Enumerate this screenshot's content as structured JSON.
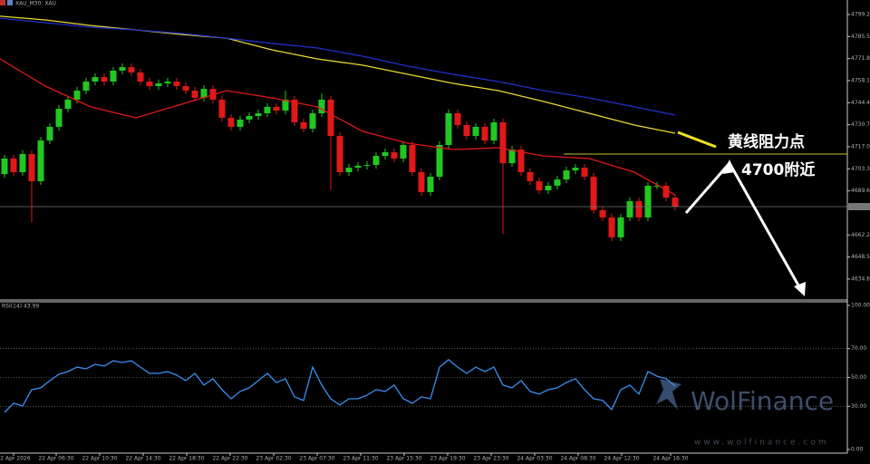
{
  "chart_data": [
    {
      "type": "candlestick",
      "symbol_label": "XAU_M30: XAU",
      "xlim": [
        -0.5,
        93
      ],
      "ylim": [
        4621.8,
        4808.2
      ],
      "yticks": [
        {
          "value": 4799.2,
          "label": "4799.20"
        },
        {
          "value": 4785.5,
          "label": "4785.50"
        },
        {
          "value": 4771.8,
          "label": "4771.80"
        },
        {
          "value": 4758.1,
          "label": "4758.10"
        },
        {
          "value": 4744.4,
          "label": "4744.40"
        },
        {
          "value": 4730.7,
          "label": "4730.70"
        },
        {
          "value": 4717,
          "label": "4717.00"
        },
        {
          "value": 4703.3,
          "label": "4703.30"
        },
        {
          "value": 4689.6,
          "label": "4689.60"
        },
        {
          "value": 4662.2,
          "label": "4662.20"
        },
        {
          "value": 4648.5,
          "label": "4648.50"
        },
        {
          "value": 4634.8,
          "label": "4634.80"
        }
      ],
      "up_color": "#22c722",
      "down_color": "#e01818",
      "open": [
        4700.0,
        4709.7,
        4701.2,
        4712.5,
        4695.6,
        4720.9,
        4729.4,
        4740.6,
        4746.3,
        4751.9,
        4757.5,
        4760.3,
        4757.5,
        4764.3,
        4766.5,
        4763.2,
        4757.5,
        4754.7,
        4756.4,
        4757.5,
        4754.7,
        4751.9,
        4747.4,
        4753.0,
        4746.3,
        4735.0,
        4729.4,
        4733.9,
        4736.1,
        4737.8,
        4741.8,
        4739.5,
        4746.3,
        4732.2,
        4728.2,
        4737.8,
        4746.3,
        4723.7,
        4701.2,
        4704.0,
        4705.2,
        4705.7,
        4711.3,
        4713.6,
        4709.7,
        4718.1,
        4701.2,
        4688.8,
        4698.4,
        4718.1,
        4737.8,
        4730.5,
        4723.7,
        4729.4,
        4720.9,
        4732.2,
        4706.8,
        4715.3,
        4701.2,
        4695.6,
        4689.9,
        4692.8,
        4696.7,
        4702.3,
        4704.0,
        4698.4,
        4677.6,
        4673.1,
        4660.7,
        4673.1,
        4683.2,
        4673.1,
        4692.8,
        4692.8,
        4685.4
      ],
      "high": [
        4712.0,
        4712.0,
        4714.8,
        4714.8,
        4723.2,
        4731.7,
        4742.9,
        4748.6,
        4754.2,
        4759.8,
        4762.6,
        4762.6,
        4766.6,
        4768.8,
        4768.8,
        4765.5,
        4759.8,
        4758.7,
        4759.8,
        4759.8,
        4757.0,
        4754.2,
        4755.3,
        4755.3,
        4748.6,
        4737.3,
        4736.2,
        4738.4,
        4740.1,
        4744.1,
        4744.1,
        4752.0,
        4748.6,
        4734.5,
        4740.1,
        4750.0,
        4748.6,
        4726.0,
        4706.3,
        4707.5,
        4708.0,
        4713.6,
        4715.9,
        4715.9,
        4720.4,
        4720.4,
        4703.5,
        4700.7,
        4720.4,
        4740.1,
        4740.1,
        4732.8,
        4731.7,
        4731.7,
        4734.5,
        4734.5,
        4717.6,
        4717.6,
        4703.5,
        4697.9,
        4695.1,
        4699.0,
        4704.6,
        4706.3,
        4706.3,
        4700.7,
        4679.9,
        4675.4,
        4675.4,
        4685.5,
        4685.5,
        4695.1,
        4695.1,
        4695.1,
        4687.7
      ],
      "low": [
        4697.7,
        4698.9,
        4698.9,
        4670.0,
        4693.3,
        4718.6,
        4727.1,
        4738.3,
        4744.0,
        4749.6,
        4755.2,
        4755.2,
        4755.2,
        4762.0,
        4760.9,
        4755.2,
        4752.4,
        4752.4,
        4754.1,
        4752.4,
        4749.6,
        4745.1,
        4745.1,
        4744.0,
        4732.7,
        4727.1,
        4727.1,
        4731.6,
        4733.8,
        4735.5,
        4737.2,
        4737.2,
        4729.9,
        4725.9,
        4725.9,
        4735.5,
        4690.0,
        4698.9,
        4698.9,
        4701.7,
        4702.9,
        4703.4,
        4709.0,
        4707.4,
        4707.4,
        4698.9,
        4686.5,
        4686.5,
        4696.1,
        4715.8,
        4728.2,
        4721.4,
        4721.4,
        4718.6,
        4718.6,
        4663.0,
        4704.5,
        4698.9,
        4693.3,
        4687.6,
        4687.6,
        4690.5,
        4694.4,
        4700.0,
        4696.1,
        4675.3,
        4670.8,
        4658.4,
        4658.4,
        4670.8,
        4670.8,
        4670.8,
        4690.5,
        4683.1,
        4677.5
      ],
      "close": [
        4709.7,
        4701.2,
        4712.5,
        4695.6,
        4720.9,
        4729.4,
        4740.6,
        4746.3,
        4751.9,
        4757.5,
        4760.3,
        4757.5,
        4764.3,
        4766.5,
        4763.2,
        4757.5,
        4754.7,
        4756.4,
        4757.5,
        4754.7,
        4751.9,
        4747.4,
        4753.0,
        4746.3,
        4735.0,
        4729.4,
        4733.9,
        4736.1,
        4737.8,
        4741.8,
        4739.5,
        4746.3,
        4732.2,
        4728.2,
        4737.8,
        4746.3,
        4723.7,
        4701.2,
        4704.0,
        4705.2,
        4705.7,
        4711.3,
        4713.6,
        4709.7,
        4718.1,
        4701.2,
        4688.8,
        4698.4,
        4718.1,
        4737.8,
        4730.5,
        4723.7,
        4729.4,
        4720.9,
        4732.2,
        4706.8,
        4715.3,
        4701.2,
        4695.6,
        4689.9,
        4692.8,
        4696.7,
        4702.3,
        4704.0,
        4698.4,
        4677.6,
        4673.1,
        4660.7,
        4673.1,
        4683.2,
        4673.1,
        4692.8,
        4692.8,
        4685.4,
        4679.8
      ],
      "lines": [
        {
          "color": "#e01818",
          "x": [
            -0.5,
            4.5,
            9.5,
            14.5,
            19.5,
            24.5,
            29.5,
            34.5,
            39.5,
            44.5,
            49.5,
            54.5,
            59.5,
            64.5,
            69.5,
            74
          ],
          "values": [
            4771.6,
            4754.7,
            4741.8,
            4735.0,
            4743.4,
            4751.9,
            4747.4,
            4741.8,
            4726.6,
            4719.2,
            4715.3,
            4716.4,
            4711.3,
            4709.7,
            4701.2,
            4687.1
          ]
        },
        {
          "color": "#e8d830",
          "x": [
            -0.5,
            4.5,
            9.5,
            14.5,
            19.5,
            24.5,
            29.5,
            34.5,
            39.5,
            44.5,
            49.5,
            54.5,
            59.5,
            64.5,
            69.5,
            74
          ],
          "values": [
            4798.1,
            4795.8,
            4792.4,
            4789.6,
            4786.8,
            4784.5,
            4777.2,
            4771.6,
            4767.7,
            4762.0,
            4756.4,
            4751.9,
            4745.1,
            4737.8,
            4730.5,
            4725.4
          ]
        },
        {
          "color": "#2030c8",
          "x": [
            -0.5,
            4.5,
            9.5,
            14.5,
            19.5,
            24.5,
            29.5,
            34.5,
            39.5,
            44.5,
            49.5,
            54.5,
            59.5,
            64.5,
            69.5,
            74
          ],
          "values": [
            4796.9,
            4794.1,
            4791.3,
            4789.6,
            4787.4,
            4784.5,
            4781.2,
            4778.4,
            4773.3,
            4767.1,
            4762.0,
            4757.5,
            4751.9,
            4747.4,
            4741.8,
            4736.7
          ]
        }
      ],
      "levels": [
        {
          "value": 4712.5,
          "color": "#c8c020"
        }
      ],
      "annotations": [
        "黄线阻力点",
        "4700附近"
      ],
      "watermark": [
        "WolFinance",
        "www.wolfinance.com"
      ]
    },
    {
      "type": "line",
      "title": "RSI(14) 43.99",
      "color": "#3a8ff0",
      "xlim": [
        -0.5,
        93
      ],
      "ylim": [
        0,
        100
      ],
      "yticks": [
        {
          "value": 100,
          "label": "100.00"
        },
        {
          "value": 70,
          "label": "70.00"
        },
        {
          "value": 50,
          "label": "50.00"
        },
        {
          "value": 30,
          "label": "30.00"
        },
        {
          "value": 0,
          "label": "0.00"
        }
      ],
      "levels": [
        70,
        50,
        30
      ],
      "xticks": [
        {
          "value": 1,
          "label": "22 Apr 2026"
        },
        {
          "value": 5.7,
          "label": "22 Apr 06:30"
        },
        {
          "value": 10.5,
          "label": "22 Apr 10:30"
        },
        {
          "value": 15.3,
          "label": "22 Apr 14:30"
        },
        {
          "value": 20.1,
          "label": "22 Apr 18:30"
        },
        {
          "value": 24.9,
          "label": "22 Apr 22:30"
        },
        {
          "value": 29.7,
          "label": "23 Apr 02:30"
        },
        {
          "value": 34.5,
          "label": "23 Apr 07:30"
        },
        {
          "value": 39.3,
          "label": "23 Apr 11:30"
        },
        {
          "value": 44.1,
          "label": "23 Apr 15:30"
        },
        {
          "value": 48.9,
          "label": "23 Apr 19:30"
        },
        {
          "value": 53.7,
          "label": "23 Apr 23:30"
        },
        {
          "value": 58.5,
          "label": "24 Apr 03:30"
        },
        {
          "value": 63.3,
          "label": "24 Apr 08:30"
        },
        {
          "value": 68.1,
          "label": "24 Apr 12:30"
        },
        {
          "value": 73.5,
          "label": "24 Apr 16:30"
        }
      ],
      "values": [
        25.8,
        32.1,
        30.2,
        41.5,
        42.8,
        47.8,
        52.2,
        54.1,
        57.2,
        56.0,
        59.1,
        57.9,
        61.6,
        60.4,
        61.6,
        57.2,
        52.8,
        52.8,
        54.1,
        51.6,
        47.8,
        52.8,
        44.7,
        49.1,
        41.5,
        35.2,
        40.3,
        42.8,
        47.8,
        52.8,
        46.5,
        49.1,
        36.5,
        34.0,
        57.2,
        44.7,
        35.2,
        30.8,
        35.2,
        35.2,
        37.7,
        41.5,
        40.3,
        44.7,
        35.2,
        32.1,
        36.5,
        35.2,
        57.2,
        62.3,
        57.2,
        52.8,
        57.2,
        54.1,
        57.2,
        44.7,
        42.8,
        47.8,
        40.3,
        38.4,
        41.5,
        42.8,
        46.5,
        49.1,
        41.5,
        35.2,
        34.0,
        27.7,
        41.5,
        44.7,
        38.4,
        54.1,
        50.9,
        49.1,
        44.0
      ]
    }
  ]
}
